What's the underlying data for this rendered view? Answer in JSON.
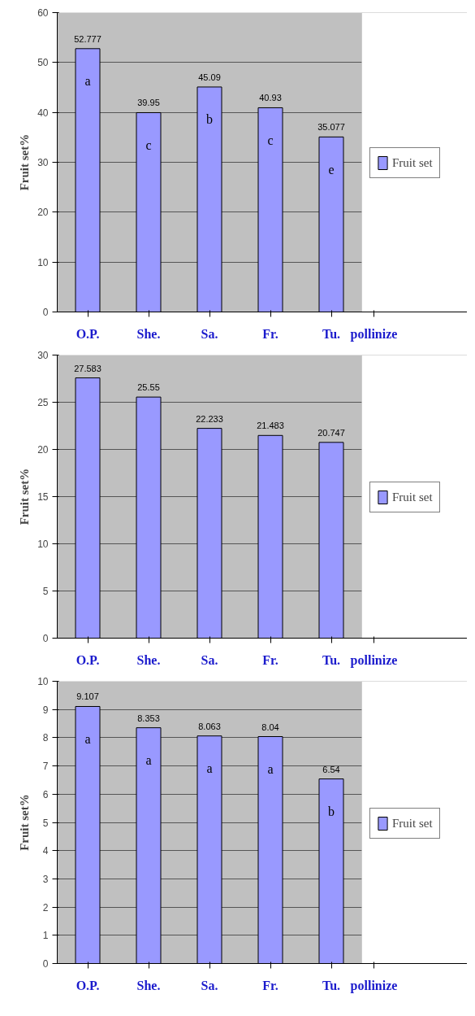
{
  "chart_data": [
    {
      "type": "bar",
      "ylabel": "Fruit set%",
      "xlabel": "pollinize",
      "categories": [
        "O.P.",
        "She.",
        "Sa.",
        "Fr.",
        "Tu."
      ],
      "series": [
        {
          "name": "Fruit set",
          "color": "#9999ff",
          "values": [
            52.777,
            39.95,
            45.09,
            40.93,
            35.077
          ]
        }
      ],
      "ylim": [
        0,
        60
      ],
      "yticks": [
        0,
        10,
        20,
        30,
        40,
        50,
        60
      ],
      "grid": "y",
      "legend": "right",
      "data_labels": true,
      "annotations": [
        "a",
        "c",
        "b",
        "c",
        "e"
      ]
    },
    {
      "type": "bar",
      "ylabel": "Fruit set%",
      "xlabel": "pollinize",
      "categories": [
        "O.P.",
        "She.",
        "Sa.",
        "Fr.",
        "Tu."
      ],
      "series": [
        {
          "name": "Fruit set",
          "color": "#9999ff",
          "values": [
            27.583,
            25.55,
            22.233,
            21.483,
            20.747
          ]
        }
      ],
      "ylim": [
        0,
        30
      ],
      "yticks": [
        0,
        5,
        10,
        15,
        20,
        25,
        30
      ],
      "grid": "y",
      "legend": "right",
      "data_labels": true
    },
    {
      "type": "bar",
      "ylabel": "Fruit set%",
      "xlabel": "pollinize",
      "categories": [
        "O.P.",
        "She.",
        "Sa.",
        "Fr.",
        "Tu."
      ],
      "series": [
        {
          "name": "Fruit set",
          "color": "#9999ff",
          "values": [
            9.107,
            8.353,
            8.063,
            8.04,
            6.54
          ]
        }
      ],
      "ylim": [
        0,
        10
      ],
      "yticks": [
        0,
        1,
        2,
        3,
        4,
        5,
        6,
        7,
        8,
        9,
        10
      ],
      "grid": "y",
      "legend": "right",
      "data_labels": true,
      "annotations": [
        "a",
        "a",
        "a",
        "a",
        "b"
      ]
    }
  ]
}
